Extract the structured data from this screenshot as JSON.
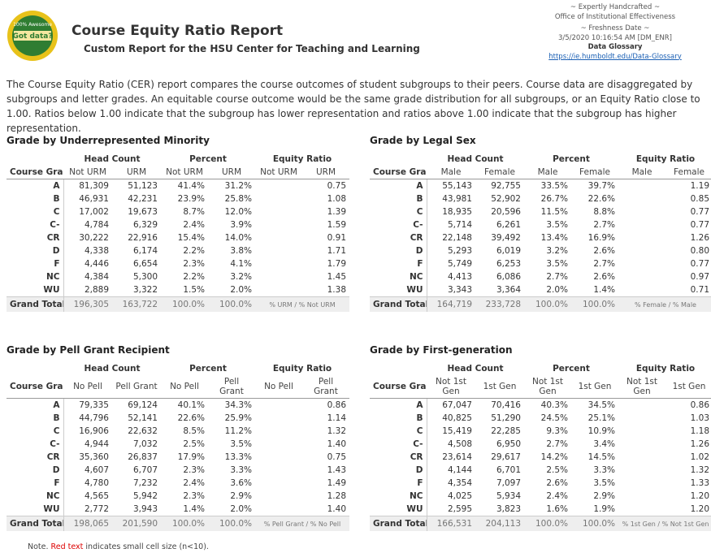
{
  "header": {
    "logo": [
      "100% Awesome",
      "Got data?"
    ],
    "title": "Course Equity Ratio Report",
    "subtitle": "Custom Report for the HSU Center for Teaching and Learning",
    "meta": [
      "~ Expertly Handcrafted ~",
      "Office of Institutional Effectiveness",
      "~ Freshness Date ~",
      "3/5/2020 10:16:54 AM [DM_ENR]",
      "Data Glossary"
    ],
    "link": "https://ie.humboldt.edu/Data-Glossary"
  },
  "intro": "The Course Equity Ratio (CER) report compares the course outcomes of student subgroups to their peers. Course data are disaggregated by subgroups and letter grades. An equitable course outcome would be the same grade distribution for all subgroups, or an Equity Ratio close to 1.00. Ratios below 1.00 indicate that the subgroup has lower representation and ratios above 1.00 indicate that the subgroup has higher representation.",
  "tables": [
    {
      "title": "Grade by Underrepresented Minority",
      "groups": [
        "Head Count",
        "Percent",
        "Equity Ratio"
      ],
      "row_header": "Course Grade",
      "columns": [
        "Not URM",
        "URM",
        "Not URM",
        "URM",
        "Not URM",
        "URM"
      ],
      "rows": [
        [
          "A",
          "81,309",
          "51,123",
          "41.4%",
          "31.2%",
          "0.75"
        ],
        [
          "B",
          "46,931",
          "42,231",
          "23.9%",
          "25.8%",
          "1.08"
        ],
        [
          "C",
          "17,002",
          "19,673",
          "8.7%",
          "12.0%",
          "1.39"
        ],
        [
          "C-",
          "4,784",
          "6,329",
          "2.4%",
          "3.9%",
          "1.59"
        ],
        [
          "CR",
          "30,222",
          "22,916",
          "15.4%",
          "14.0%",
          "0.91"
        ],
        [
          "D",
          "4,338",
          "6,174",
          "2.2%",
          "3.8%",
          "1.71"
        ],
        [
          "F",
          "4,446",
          "6,654",
          "2.3%",
          "4.1%",
          "1.79"
        ],
        [
          "NC",
          "4,384",
          "5,300",
          "2.2%",
          "3.2%",
          "1.45"
        ],
        [
          "WU",
          "2,889",
          "3,322",
          "1.5%",
          "2.0%",
          "1.38"
        ]
      ],
      "total": [
        "Grand Total",
        "196,305",
        "163,722",
        "100.0%",
        "100.0%",
        "% URM / % Not URM"
      ]
    },
    {
      "title": "Grade by Legal Sex",
      "groups": [
        "Head Count",
        "Percent",
        "Equity Ratio"
      ],
      "row_header": "Course Grade",
      "columns": [
        "Male",
        "Female",
        "Male",
        "Female",
        "Male",
        "Female"
      ],
      "rows": [
        [
          "A",
          "55,143",
          "92,755",
          "33.5%",
          "39.7%",
          "1.19"
        ],
        [
          "B",
          "43,981",
          "52,902",
          "26.7%",
          "22.6%",
          "0.85"
        ],
        [
          "C",
          "18,935",
          "20,596",
          "11.5%",
          "8.8%",
          "0.77"
        ],
        [
          "C-",
          "5,714",
          "6,261",
          "3.5%",
          "2.7%",
          "0.77"
        ],
        [
          "CR",
          "22,148",
          "39,492",
          "13.4%",
          "16.9%",
          "1.26"
        ],
        [
          "D",
          "5,293",
          "6,019",
          "3.2%",
          "2.6%",
          "0.80"
        ],
        [
          "F",
          "5,749",
          "6,253",
          "3.5%",
          "2.7%",
          "0.77"
        ],
        [
          "NC",
          "4,413",
          "6,086",
          "2.7%",
          "2.6%",
          "0.97"
        ],
        [
          "WU",
          "3,343",
          "3,364",
          "2.0%",
          "1.4%",
          "0.71"
        ]
      ],
      "total": [
        "Grand Total",
        "164,719",
        "233,728",
        "100.0%",
        "100.0%",
        "% Female / % Male"
      ]
    },
    {
      "title": "Grade by Pell Grant Recipient",
      "groups": [
        "Head Count",
        "Percent",
        "Equity Ratio"
      ],
      "row_header": "Course Grade",
      "columns": [
        "No Pell",
        "Pell Grant",
        "No Pell",
        "Pell Grant",
        "No Pell",
        "Pell Grant"
      ],
      "rows": [
        [
          "A",
          "79,335",
          "69,124",
          "40.1%",
          "34.3%",
          "0.86"
        ],
        [
          "B",
          "44,796",
          "52,141",
          "22.6%",
          "25.9%",
          "1.14"
        ],
        [
          "C",
          "16,906",
          "22,632",
          "8.5%",
          "11.2%",
          "1.32"
        ],
        [
          "C-",
          "4,944",
          "7,032",
          "2.5%",
          "3.5%",
          "1.40"
        ],
        [
          "CR",
          "35,360",
          "26,837",
          "17.9%",
          "13.3%",
          "0.75"
        ],
        [
          "D",
          "4,607",
          "6,707",
          "2.3%",
          "3.3%",
          "1.43"
        ],
        [
          "F",
          "4,780",
          "7,232",
          "2.4%",
          "3.6%",
          "1.49"
        ],
        [
          "NC",
          "4,565",
          "5,942",
          "2.3%",
          "2.9%",
          "1.28"
        ],
        [
          "WU",
          "2,772",
          "3,943",
          "1.4%",
          "2.0%",
          "1.40"
        ]
      ],
      "total": [
        "Grand Total",
        "198,065",
        "201,590",
        "100.0%",
        "100.0%",
        "% Pell Grant / % No Pell"
      ]
    },
    {
      "title": "Grade by First-generation",
      "groups": [
        "Head Count",
        "Percent",
        "Equity Ratio"
      ],
      "row_header": "Course Grade",
      "columns": [
        "Not 1st Gen",
        "1st Gen",
        "Not 1st Gen",
        "1st Gen",
        "Not 1st Gen",
        "1st Gen"
      ],
      "rows": [
        [
          "A",
          "67,047",
          "70,416",
          "40.3%",
          "34.5%",
          "0.86"
        ],
        [
          "B",
          "40,825",
          "51,290",
          "24.5%",
          "25.1%",
          "1.03"
        ],
        [
          "C",
          "15,419",
          "22,285",
          "9.3%",
          "10.9%",
          "1.18"
        ],
        [
          "C-",
          "4,508",
          "6,950",
          "2.7%",
          "3.4%",
          "1.26"
        ],
        [
          "CR",
          "23,614",
          "29,617",
          "14.2%",
          "14.5%",
          "1.02"
        ],
        [
          "D",
          "4,144",
          "6,701",
          "2.5%",
          "3.3%",
          "1.32"
        ],
        [
          "F",
          "4,354",
          "7,097",
          "2.6%",
          "3.5%",
          "1.33"
        ],
        [
          "NC",
          "4,025",
          "5,934",
          "2.4%",
          "2.9%",
          "1.20"
        ],
        [
          "WU",
          "2,595",
          "3,823",
          "1.6%",
          "1.9%",
          "1.20"
        ]
      ],
      "total": [
        "Grand Total",
        "166,531",
        "204,113",
        "100.0%",
        "100.0%",
        "% 1st Gen / % Not 1st Gen"
      ]
    }
  ],
  "note": {
    "prefix": "Note.",
    "red": "Red text",
    "rest": "indicates small cell size (n<10)."
  }
}
